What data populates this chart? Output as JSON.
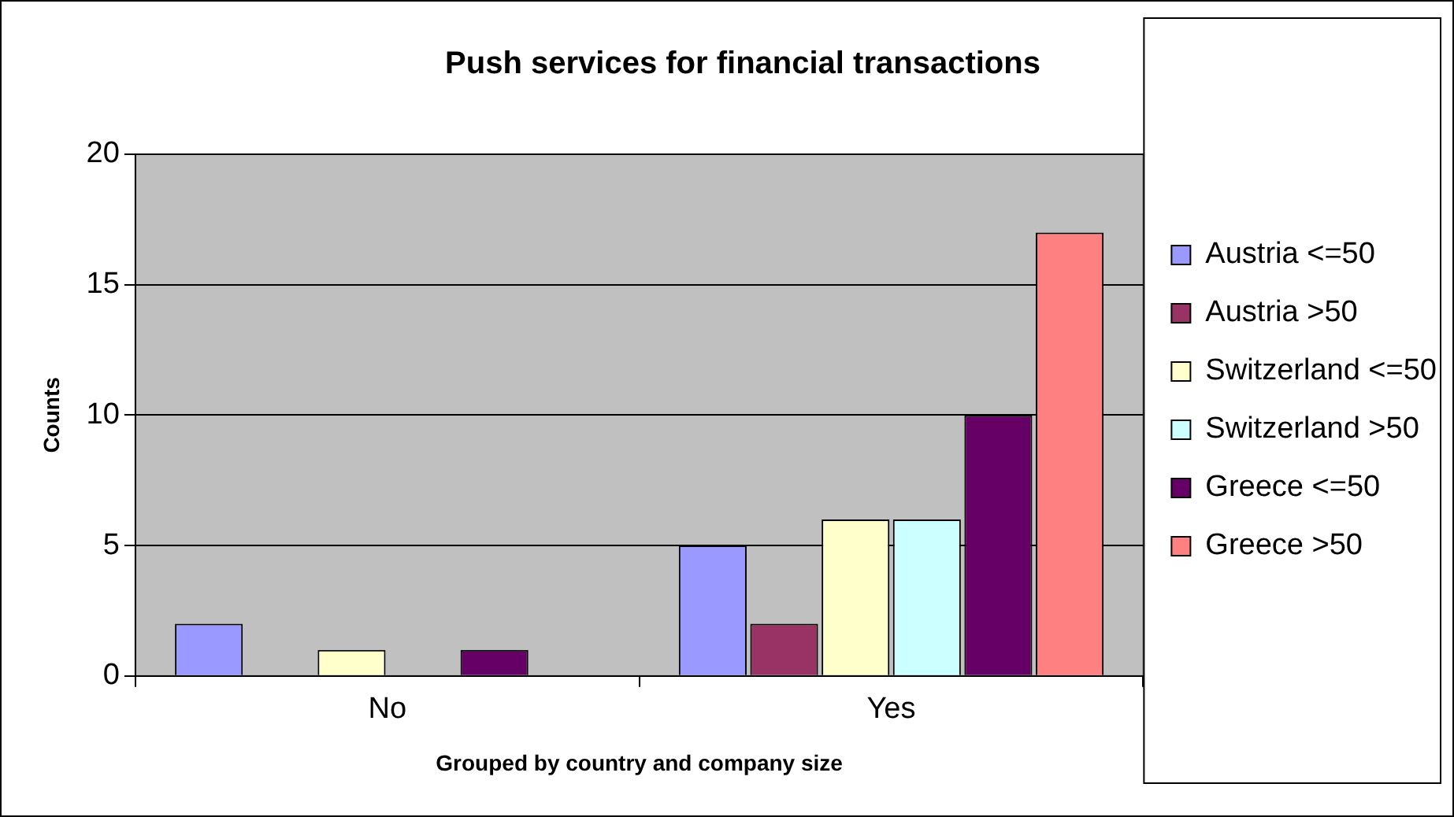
{
  "chart_data": {
    "type": "bar",
    "title": "Push services for financial transactions",
    "xlabel": "Grouped by country and company size",
    "ylabel": "Counts",
    "categories": [
      "No",
      "Yes"
    ],
    "series": [
      {
        "name": "Austria <=50",
        "color": "#9999ff",
        "values": [
          2,
          5
        ]
      },
      {
        "name": "Austria >50",
        "color": "#993366",
        "values": [
          0,
          2
        ]
      },
      {
        "name": "Switzerland <=50",
        "color": "#ffffcc",
        "values": [
          1,
          6
        ]
      },
      {
        "name": "Switzerland >50",
        "color": "#ccffff",
        "values": [
          0,
          6
        ]
      },
      {
        "name": "Greece <=50",
        "color": "#660066",
        "values": [
          1,
          10
        ]
      },
      {
        "name": "Greece >50",
        "color": "#ff8080",
        "values": [
          0,
          17
        ]
      }
    ],
    "ylim": [
      0,
      20
    ],
    "yticks": [
      0,
      5,
      10,
      15,
      20
    ],
    "grid": "y",
    "legend": "right"
  }
}
